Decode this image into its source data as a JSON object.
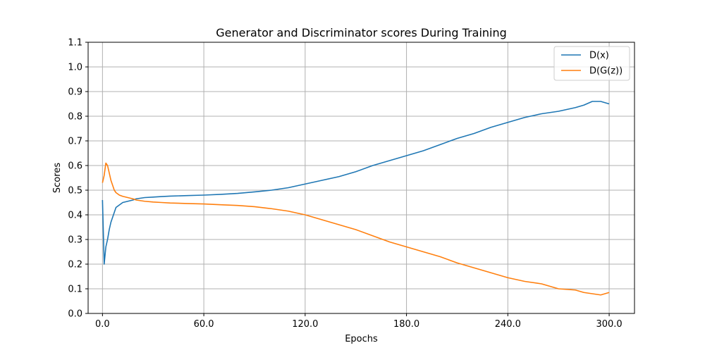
{
  "chart_data": {
    "type": "line",
    "title": "Generator and Discriminator scores During Training",
    "xlabel": "Epochs",
    "ylabel": "Scores",
    "xlim": [
      -8.5,
      315
    ],
    "ylim": [
      0.0,
      1.1
    ],
    "xticks": [
      0,
      60,
      120,
      180,
      240,
      300
    ],
    "xtick_labels": [
      "0.0",
      "60.0",
      "120.0",
      "180.0",
      "240.0",
      "300.0"
    ],
    "yticks": [
      0.0,
      0.1,
      0.2,
      0.3,
      0.4,
      0.5,
      0.6,
      0.7,
      0.8,
      0.9,
      1.0,
      1.1
    ],
    "ytick_labels": [
      "0.0",
      "0.1",
      "0.2",
      "0.3",
      "0.4",
      "0.5",
      "0.6",
      "0.7",
      "0.8",
      "0.9",
      "1.0",
      "1.1"
    ],
    "grid": true,
    "legend_position": "top-right",
    "series": [
      {
        "name": "D(x)",
        "color": "#1f77b4",
        "x": [
          0,
          1,
          2,
          3,
          4,
          5,
          6,
          7,
          8,
          10,
          12,
          15,
          18,
          20,
          25,
          30,
          35,
          40,
          50,
          60,
          70,
          80,
          90,
          100,
          110,
          120,
          130,
          140,
          150,
          160,
          170,
          180,
          190,
          200,
          210,
          220,
          230,
          240,
          250,
          260,
          270,
          280,
          285,
          290,
          295,
          300
        ],
        "y": [
          0.46,
          0.2,
          0.27,
          0.3,
          0.34,
          0.37,
          0.39,
          0.41,
          0.43,
          0.44,
          0.45,
          0.455,
          0.46,
          0.465,
          0.47,
          0.472,
          0.474,
          0.476,
          0.478,
          0.48,
          0.483,
          0.487,
          0.493,
          0.5,
          0.51,
          0.525,
          0.54,
          0.555,
          0.575,
          0.6,
          0.62,
          0.64,
          0.66,
          0.685,
          0.71,
          0.73,
          0.755,
          0.775,
          0.795,
          0.81,
          0.82,
          0.835,
          0.845,
          0.86,
          0.86,
          0.85
        ]
      },
      {
        "name": "D(G(z))",
        "color": "#ff7f0e",
        "x": [
          0,
          1,
          2,
          3,
          4,
          5,
          6,
          7,
          8,
          10,
          12,
          15,
          18,
          20,
          25,
          30,
          35,
          40,
          50,
          60,
          70,
          80,
          90,
          100,
          110,
          120,
          130,
          140,
          150,
          160,
          170,
          180,
          190,
          200,
          210,
          220,
          230,
          240,
          250,
          260,
          270,
          280,
          285,
          290,
          295,
          300
        ],
        "y": [
          0.53,
          0.56,
          0.61,
          0.6,
          0.57,
          0.54,
          0.52,
          0.5,
          0.49,
          0.48,
          0.475,
          0.47,
          0.465,
          0.46,
          0.455,
          0.452,
          0.45,
          0.448,
          0.446,
          0.444,
          0.441,
          0.438,
          0.433,
          0.425,
          0.415,
          0.4,
          0.38,
          0.36,
          0.34,
          0.315,
          0.29,
          0.27,
          0.25,
          0.23,
          0.205,
          0.185,
          0.165,
          0.145,
          0.13,
          0.12,
          0.1,
          0.095,
          0.085,
          0.08,
          0.075,
          0.085
        ]
      }
    ]
  }
}
